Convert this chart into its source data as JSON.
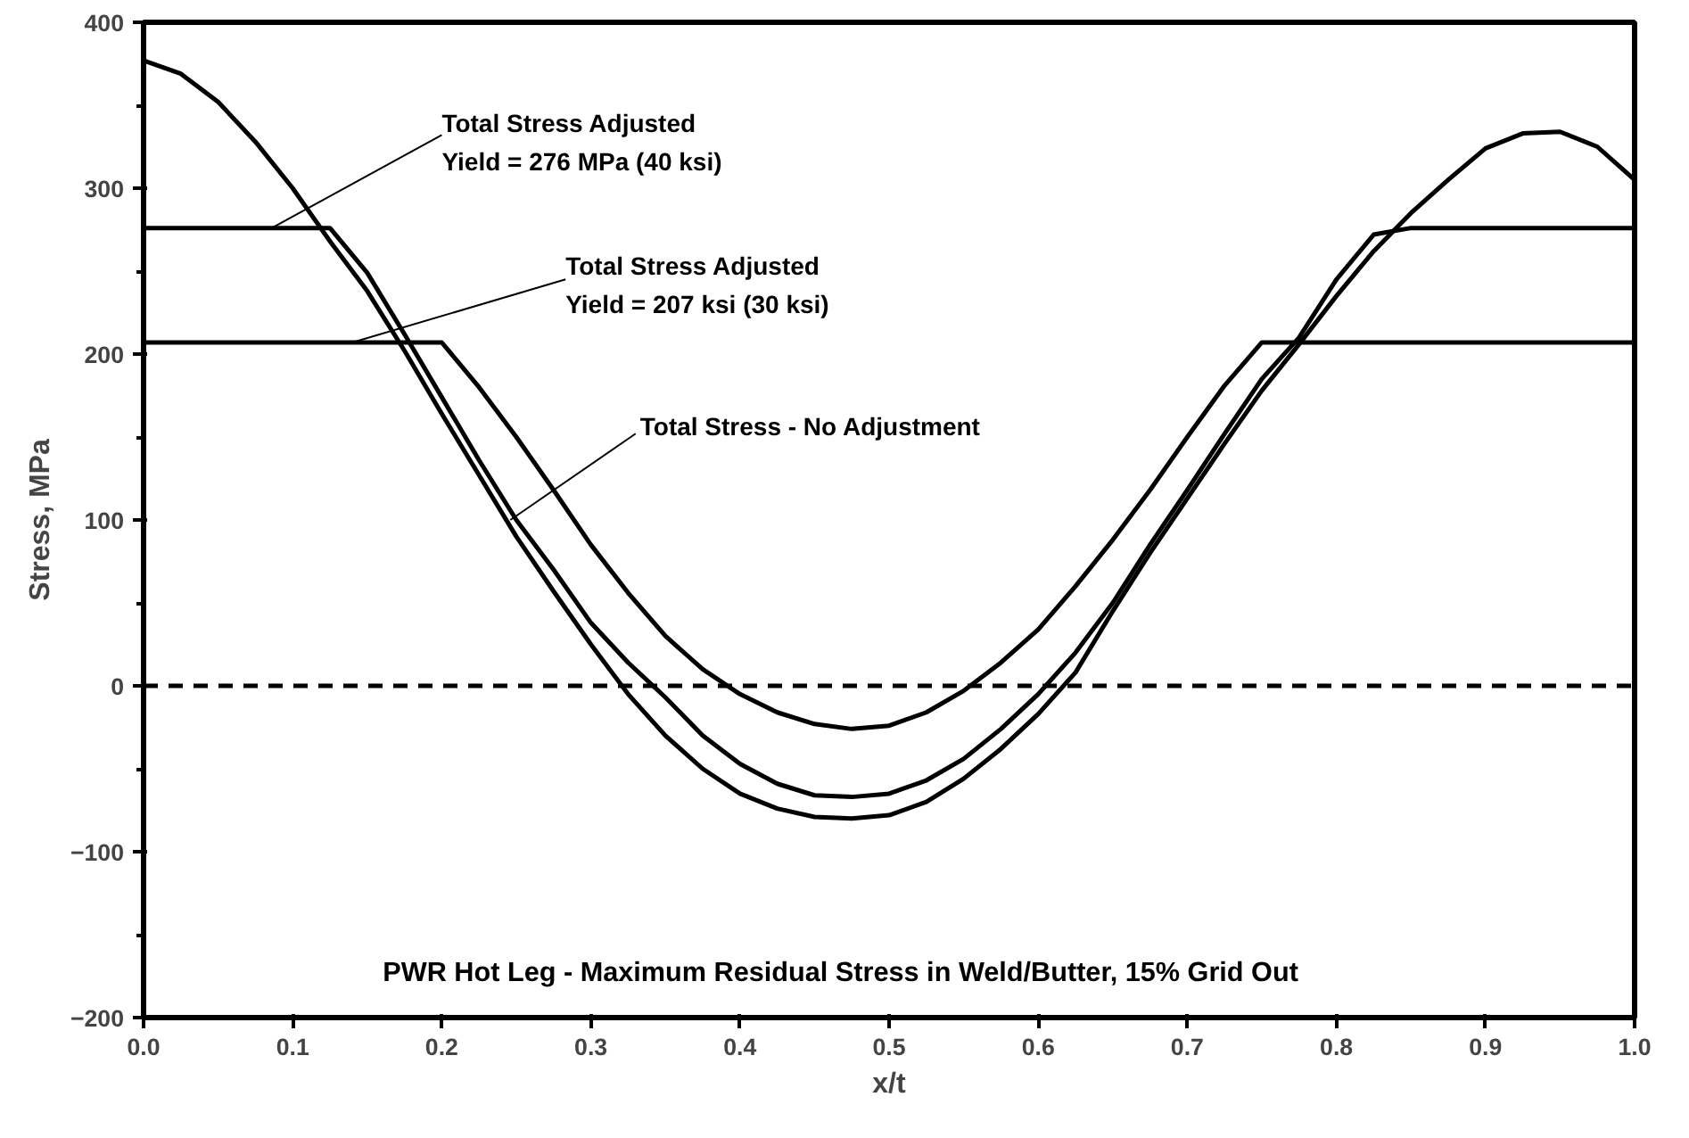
{
  "chart_data": {
    "type": "line",
    "title": "PWR Hot Leg  - Maximum Residual Stress in Weld/Butter, 15% Grid Out",
    "xlabel": "x/t",
    "ylabel": "Stress, MPa",
    "x": [
      0,
      0.025,
      0.05,
      0.075,
      0.1,
      0.125,
      0.15,
      0.175,
      0.2,
      0.225,
      0.25,
      0.275,
      0.3,
      0.325,
      0.35,
      0.375,
      0.4,
      0.425,
      0.45,
      0.475,
      0.5,
      0.525,
      0.55,
      0.575,
      0.6,
      0.625,
      0.65,
      0.675,
      0.7,
      0.725,
      0.75,
      0.775,
      0.8,
      0.825,
      0.85,
      0.875,
      0.9,
      0.925,
      0.95,
      0.975,
      1.0
    ],
    "series": [
      {
        "color": "#000000",
        "values": [
          276,
          276,
          276,
          276,
          276,
          276,
          249,
          212,
          174,
          136,
          100,
          70,
          38,
          14,
          -7,
          -30,
          -47,
          -59,
          -66,
          -67,
          -65,
          -57,
          -44,
          -26,
          -5,
          20,
          50,
          85,
          118,
          152,
          185,
          210,
          245,
          272,
          276,
          276,
          276,
          276,
          276,
          276,
          276
        ]
      },
      {
        "color": "#000000",
        "values": [
          207,
          207,
          207,
          207,
          207,
          207,
          207,
          207,
          207,
          180,
          150,
          118,
          85,
          56,
          30,
          10,
          -5,
          -16,
          -23,
          -26,
          -24,
          -16,
          -3,
          14,
          34,
          60,
          88,
          118,
          150,
          181,
          207,
          207,
          207,
          207,
          207,
          207,
          207,
          207,
          207,
          207,
          207
        ]
      },
      {
        "color": "#000000",
        "values": [
          377,
          369,
          352,
          328,
          300,
          268,
          238,
          202,
          164,
          127,
          90,
          57,
          25,
          -5,
          -30,
          -50,
          -65,
          -74,
          -79,
          -80,
          -78,
          -70,
          -56,
          -38,
          -17,
          8,
          45,
          80,
          113,
          146,
          178,
          206,
          235,
          262,
          285,
          305,
          324,
          333,
          334,
          325,
          305
        ]
      }
    ],
    "xlim": [
      0,
      1
    ],
    "ylim": [
      -200,
      400
    ],
    "xticks": [
      {
        "value": 0,
        "label": "0.0"
      },
      0.1,
      0.2,
      0.3,
      0.4,
      0.5,
      0.6,
      0.7,
      0.8,
      0.9,
      {
        "value": 1,
        "label": "1.0"
      }
    ],
    "yticks": [
      -200,
      -100,
      0,
      100,
      200,
      300,
      400
    ],
    "annotations": [
      {
        "text": "Total Stress Adjusted\nYield = 276 MPa (40 ksi)",
        "x": 0.086,
        "y": 276
      },
      {
        "text": "Total Stress Adjusted\nYield = 207 ksi (30 ksi)",
        "x": 0.14,
        "y": 207
      },
      {
        "text": "Total Stress - No Adjustment",
        "x": 0.246,
        "y": 100
      }
    ],
    "ref_lines": [
      {
        "axis": "y",
        "value": 0,
        "line_style": "dashed",
        "color": "#000000"
      }
    ],
    "grid": false,
    "marker": "none",
    "line_style": "solid"
  }
}
